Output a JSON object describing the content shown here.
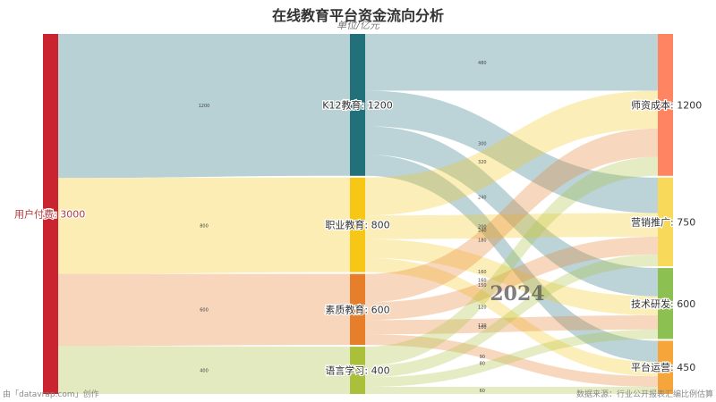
{
  "title": "在线教育平台资金流向分析",
  "subtitle": "单位/亿元",
  "footer_left": "由「datavrap.com」创作",
  "footer_right": "数据来源：行业公开报表汇编比例估算",
  "watermark": "2024",
  "chart_data": {
    "type": "sankey",
    "nodes": [
      {
        "name": "用户付费",
        "value": 3000,
        "color": "#c9242f",
        "column": 0
      },
      {
        "name": "K12教育",
        "value": 1200,
        "color": "#22707a",
        "column": 1
      },
      {
        "name": "职业教育",
        "value": 800,
        "color": "#f6c815",
        "column": 1
      },
      {
        "name": "素质教育",
        "value": 600,
        "color": "#e67e2a",
        "column": 1
      },
      {
        "name": "语言学习",
        "value": 400,
        "color": "#aabf3a",
        "column": 1
      },
      {
        "name": "师资成本",
        "value": 1200,
        "color": "#ff8562",
        "column": 2
      },
      {
        "name": "营销推广",
        "value": 750,
        "color": "#f8d95a",
        "column": 2
      },
      {
        "name": "技术研发",
        "value": 600,
        "color": "#8cc152",
        "column": 2
      },
      {
        "name": "平台运营",
        "value": 450,
        "color": "#f5a53a",
        "column": 2
      }
    ],
    "links": [
      {
        "source": "用户付费",
        "target": "K12教育",
        "value": 1200
      },
      {
        "source": "用户付费",
        "target": "职业教育",
        "value": 800
      },
      {
        "source": "用户付费",
        "target": "素质教育",
        "value": 600
      },
      {
        "source": "用户付费",
        "target": "语言学习",
        "value": 400
      },
      {
        "source": "K12教育",
        "target": "师资成本",
        "value": 480
      },
      {
        "source": "K12教育",
        "target": "营销推广",
        "value": 300
      },
      {
        "source": "K12教育",
        "target": "技术研发",
        "value": 240
      },
      {
        "source": "K12教育",
        "target": "平台运营",
        "value": 180
      },
      {
        "source": "职业教育",
        "target": "师资成本",
        "value": 320
      },
      {
        "source": "职业教育",
        "target": "营销推广",
        "value": 200
      },
      {
        "source": "职业教育",
        "target": "技术研发",
        "value": 160
      },
      {
        "source": "职业教育",
        "target": "平台运营",
        "value": 120
      },
      {
        "source": "素质教育",
        "target": "师资成本",
        "value": 240
      },
      {
        "source": "素质教育",
        "target": "营销推广",
        "value": 150
      },
      {
        "source": "素质教育",
        "target": "技术研发",
        "value": 120
      },
      {
        "source": "素质教育",
        "target": "平台运营",
        "value": 90
      },
      {
        "source": "语言学习",
        "target": "师资成本",
        "value": 160
      },
      {
        "source": "语言学习",
        "target": "营销推广",
        "value": 100
      },
      {
        "source": "语言学习",
        "target": "技术研发",
        "value": 80
      },
      {
        "source": "语言学习",
        "target": "平台运营",
        "value": 60
      }
    ]
  }
}
